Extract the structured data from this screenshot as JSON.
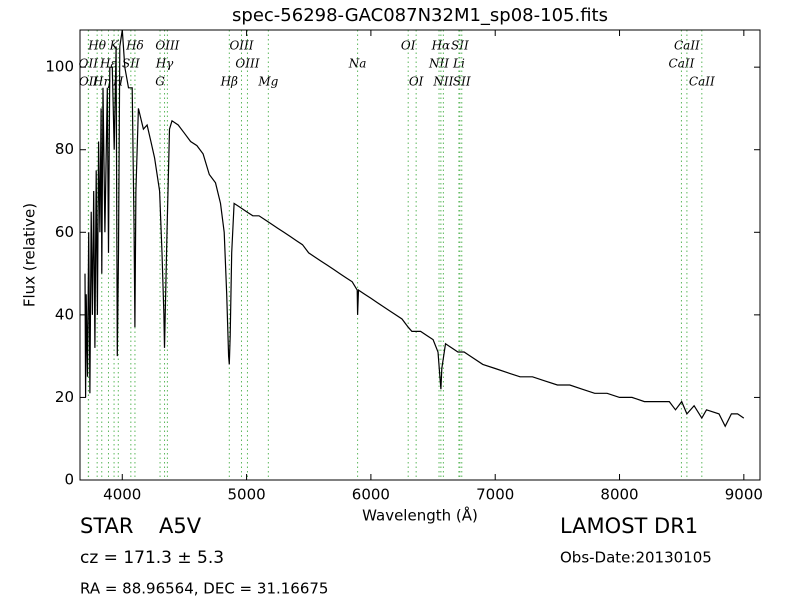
{
  "chart_data": {
    "type": "line",
    "title": "spec-56298-GAC087N32M1_sp08-105.fits",
    "xlabel": "Wavelength (Å)",
    "ylabel": "Flux (relative)",
    "xlim": [
      3660,
      9130
    ],
    "ylim": [
      0,
      109
    ],
    "xticks": [
      4000,
      5000,
      6000,
      7000,
      8000,
      9000
    ],
    "yticks": [
      0,
      20,
      40,
      60,
      80,
      100
    ],
    "color": "#000000",
    "line_color": "#5cb85c",
    "x": [
      3700,
      3705,
      3710,
      3720,
      3730,
      3740,
      3750,
      3760,
      3770,
      3780,
      3790,
      3800,
      3810,
      3820,
      3830,
      3835,
      3845,
      3860,
      3880,
      3889,
      3900,
      3920,
      3935,
      3950,
      3960,
      3970,
      3980,
      4000,
      4020,
      4050,
      4080,
      4095,
      4102,
      4110,
      4130,
      4170,
      4200,
      4230,
      4260,
      4300,
      4320,
      4335,
      4340,
      4345,
      4360,
      4380,
      4400,
      4450,
      4500,
      4550,
      4600,
      4650,
      4700,
      4750,
      4790,
      4820,
      4840,
      4855,
      4861,
      4868,
      4880,
      4900,
      4950,
      5000,
      5050,
      5100,
      5150,
      5200,
      5250,
      5300,
      5350,
      5400,
      5450,
      5500,
      5550,
      5600,
      5650,
      5700,
      5750,
      5800,
      5850,
      5890,
      5893,
      5900,
      5950,
      6000,
      6050,
      6100,
      6150,
      6200,
      6250,
      6300,
      6330,
      6400,
      6450,
      6500,
      6540,
      6555,
      6563,
      6570,
      6600,
      6650,
      6700,
      6750,
      6800,
      6900,
      7000,
      7100,
      7200,
      7300,
      7400,
      7500,
      7600,
      7700,
      7800,
      7900,
      8000,
      8100,
      8200,
      8300,
      8400,
      8450,
      8500,
      8542,
      8600,
      8662,
      8700,
      8800,
      8850,
      8900,
      8950,
      9000
    ],
    "values": [
      50,
      20,
      45,
      25,
      60,
      21,
      65,
      40,
      70,
      32,
      75,
      40,
      82,
      60,
      90,
      50,
      95,
      60,
      95,
      55,
      100,
      100,
      80,
      105,
      30,
      55,
      105,
      109,
      100,
      95,
      95,
      60,
      37,
      70,
      90,
      85,
      86,
      82,
      78,
      70,
      55,
      40,
      32,
      40,
      60,
      85,
      87,
      86,
      84,
      82,
      81,
      79,
      74,
      72,
      67,
      60,
      45,
      30,
      28,
      35,
      55,
      67,
      66,
      65,
      64,
      64,
      63,
      62,
      61,
      60,
      59,
      58,
      57,
      55,
      54,
      53,
      52,
      51,
      50,
      49,
      48,
      46,
      40,
      46,
      45,
      44,
      43,
      42,
      41,
      40,
      39,
      37,
      36,
      36,
      35,
      34,
      31,
      25,
      22,
      27,
      33,
      32,
      31,
      31,
      30,
      28,
      27,
      26,
      25,
      25,
      24,
      23,
      23,
      22,
      21,
      21,
      20,
      20,
      19,
      19,
      19,
      17,
      19,
      16,
      18,
      15,
      17,
      16,
      13,
      16,
      16,
      15
    ],
    "lines": [
      {
        "label": "OII",
        "x": 3727
      },
      {
        "label": "OII",
        "x": 3729
      },
      {
        "label": "Hθ",
        "x": 3798
      },
      {
        "label": "Hη",
        "x": 3835
      },
      {
        "label": "Hε",
        "x": 3889
      },
      {
        "label": "K",
        "x": 3934
      },
      {
        "label": "H",
        "x": 3968
      },
      {
        "label": "SII",
        "x": 4069
      },
      {
        "label": "Hδ",
        "x": 4102
      },
      {
        "label": "G",
        "x": 4304
      },
      {
        "label": "Hγ",
        "x": 4340
      },
      {
        "label": "OIII",
        "x": 4363
      },
      {
        "label": "Hβ",
        "x": 4861
      },
      {
        "label": "OIII",
        "x": 4959
      },
      {
        "label": "OIII",
        "x": 5007
      },
      {
        "label": "Mg",
        "x": 5175
      },
      {
        "label": "Na",
        "x": 5893
      },
      {
        "label": "OI",
        "x": 6300
      },
      {
        "label": "OI",
        "x": 6364
      },
      {
        "label": "NII",
        "x": 6548
      },
      {
        "label": "Hα",
        "x": 6563
      },
      {
        "label": "NII",
        "x": 6583
      },
      {
        "label": "Li",
        "x": 6708
      },
      {
        "label": "SII",
        "x": 6716
      },
      {
        "label": "SII",
        "x": 6731
      },
      {
        "label": "CaII",
        "x": 8498
      },
      {
        "label": "CaII",
        "x": 8542
      },
      {
        "label": "CaII",
        "x": 8662
      }
    ],
    "footer": {
      "class": "STAR",
      "subclass": "A5V",
      "survey": "LAMOST DR1",
      "redshift": "cz = 171.3 ± 5.3",
      "obs_date": "Obs-Date:20130105",
      "position": "RA = 88.96564, DEC = 31.16675"
    }
  }
}
